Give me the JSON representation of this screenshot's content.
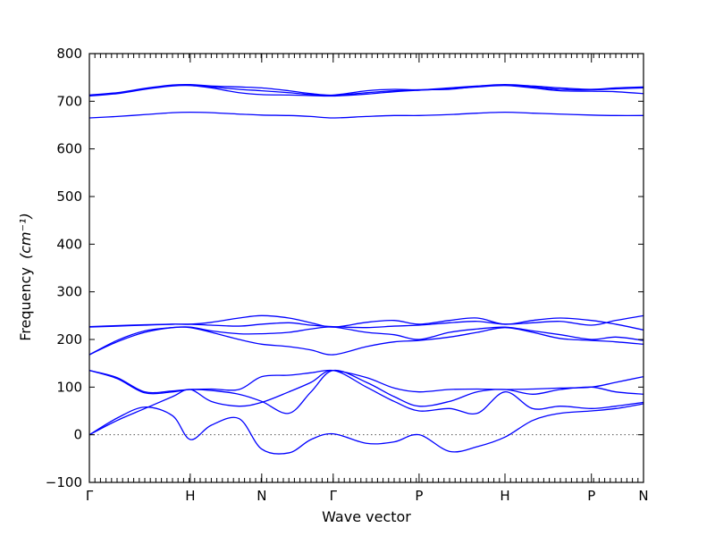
{
  "chart_data": {
    "type": "line",
    "xlabel": "Wave vector",
    "ylabel": "Frequency",
    "ylabel_unit": "(cm⁻¹)",
    "ylim": [
      -100,
      800
    ],
    "yticks": [
      -100,
      0,
      100,
      200,
      300,
      400,
      500,
      600,
      700,
      800
    ],
    "zero_reference_line": true,
    "grid": false,
    "legend": "none",
    "line_color": "#0000ff",
    "x_path": {
      "labels": [
        "Γ",
        "H",
        "N",
        "Γ",
        "P",
        "H",
        "P",
        "N"
      ],
      "positions": [
        0,
        0.182,
        0.311,
        0.44,
        0.595,
        0.75,
        0.906,
        1.0
      ]
    },
    "bands": [
      {
        "name": "",
        "x": [
          0,
          0.05,
          0.1,
          0.15,
          0.182,
          0.22,
          0.27,
          0.311,
          0.36,
          0.4,
          0.44,
          0.5,
          0.55,
          0.595,
          0.65,
          0.7,
          0.75,
          0.8,
          0.85,
          0.906,
          0.95,
          1.0
        ],
        "y": [
          0,
          35,
          58,
          40,
          -10,
          20,
          34,
          -30,
          -38,
          -10,
          2,
          -18,
          -15,
          0,
          -35,
          -25,
          -5,
          30,
          45,
          50,
          55,
          65
        ]
      },
      {
        "name": "",
        "x": [
          0,
          0.05,
          0.1,
          0.15,
          0.182,
          0.22,
          0.27,
          0.311,
          0.36,
          0.4,
          0.44,
          0.5,
          0.55,
          0.595,
          0.65,
          0.7,
          0.75,
          0.8,
          0.85,
          0.906,
          0.95,
          1.0
        ],
        "y": [
          0,
          30,
          55,
          80,
          95,
          70,
          60,
          68,
          90,
          110,
          135,
          100,
          70,
          50,
          55,
          45,
          90,
          55,
          60,
          55,
          60,
          68
        ]
      },
      {
        "name": "",
        "x": [
          0,
          0.05,
          0.1,
          0.15,
          0.182,
          0.22,
          0.27,
          0.311,
          0.36,
          0.4,
          0.44,
          0.5,
          0.55,
          0.595,
          0.65,
          0.7,
          0.75,
          0.8,
          0.85,
          0.906,
          0.95,
          1.0
        ],
        "y": [
          135,
          120,
          90,
          92,
          95,
          93,
          85,
          70,
          45,
          90,
          135,
          110,
          80,
          60,
          70,
          90,
          95,
          85,
          95,
          100,
          90,
          85
        ]
      },
      {
        "name": "",
        "x": [
          0,
          0.05,
          0.1,
          0.15,
          0.182,
          0.22,
          0.27,
          0.311,
          0.36,
          0.4,
          0.44,
          0.5,
          0.55,
          0.595,
          0.65,
          0.7,
          0.75,
          0.8,
          0.85,
          0.906,
          0.95,
          1.0
        ],
        "y": [
          135,
          118,
          88,
          90,
          95,
          96,
          95,
          122,
          125,
          130,
          135,
          120,
          98,
          90,
          95,
          96,
          95,
          96,
          98,
          100,
          110,
          122
        ]
      },
      {
        "name": "",
        "x": [
          0,
          0.05,
          0.1,
          0.15,
          0.182,
          0.22,
          0.27,
          0.311,
          0.36,
          0.4,
          0.44,
          0.5,
          0.55,
          0.595,
          0.65,
          0.7,
          0.75,
          0.8,
          0.85,
          0.906,
          0.95,
          1.0
        ],
        "y": [
          168,
          195,
          215,
          225,
          225,
          215,
          200,
          190,
          185,
          178,
          168,
          185,
          195,
          198,
          205,
          215,
          225,
          215,
          202,
          198,
          195,
          190
        ]
      },
      {
        "name": "",
        "x": [
          0,
          0.05,
          0.1,
          0.15,
          0.182,
          0.22,
          0.27,
          0.311,
          0.36,
          0.4,
          0.44,
          0.5,
          0.55,
          0.595,
          0.65,
          0.7,
          0.75,
          0.8,
          0.85,
          0.906,
          0.95,
          1.0
        ],
        "y": [
          168,
          198,
          218,
          225,
          226,
          218,
          212,
          212,
          215,
          222,
          226,
          215,
          210,
          200,
          215,
          222,
          226,
          218,
          210,
          200,
          205,
          198
        ]
      },
      {
        "name": "",
        "x": [
          0,
          0.05,
          0.1,
          0.15,
          0.182,
          0.22,
          0.27,
          0.311,
          0.36,
          0.4,
          0.44,
          0.5,
          0.55,
          0.595,
          0.65,
          0.7,
          0.75,
          0.8,
          0.85,
          0.906,
          0.95,
          1.0
        ],
        "y": [
          226,
          228,
          230,
          232,
          232,
          236,
          245,
          250,
          245,
          235,
          226,
          236,
          240,
          232,
          240,
          245,
          232,
          240,
          245,
          240,
          232,
          220
        ]
      },
      {
        "name": "",
        "x": [
          0,
          0.05,
          0.1,
          0.15,
          0.182,
          0.22,
          0.27,
          0.311,
          0.36,
          0.4,
          0.44,
          0.5,
          0.55,
          0.595,
          0.65,
          0.7,
          0.75,
          0.8,
          0.85,
          0.906,
          0.95,
          1.0
        ],
        "y": [
          227,
          229,
          231,
          232,
          232,
          230,
          228,
          232,
          235,
          230,
          227,
          225,
          228,
          230,
          235,
          238,
          232,
          235,
          238,
          230,
          240,
          250
        ]
      },
      {
        "name": "",
        "x": [
          0,
          0.05,
          0.1,
          0.15,
          0.182,
          0.22,
          0.27,
          0.311,
          0.36,
          0.4,
          0.44,
          0.5,
          0.55,
          0.595,
          0.65,
          0.7,
          0.75,
          0.8,
          0.85,
          0.906,
          0.95,
          1.0
        ],
        "y": [
          665,
          668,
          672,
          676,
          677,
          676,
          673,
          671,
          670,
          668,
          665,
          668,
          670,
          670,
          672,
          675,
          677,
          675,
          673,
          671,
          670,
          670
        ]
      },
      {
        "name": "",
        "x": [
          0,
          0.05,
          0.1,
          0.15,
          0.182,
          0.22,
          0.27,
          0.311,
          0.36,
          0.4,
          0.44,
          0.5,
          0.55,
          0.595,
          0.65,
          0.7,
          0.75,
          0.8,
          0.85,
          0.906,
          0.95,
          1.0
        ],
        "y": [
          711,
          716,
          725,
          732,
          733,
          728,
          718,
          714,
          713,
          712,
          711,
          715,
          720,
          723,
          726,
          730,
          733,
          728,
          722,
          721,
          720,
          716
        ]
      },
      {
        "name": "",
        "x": [
          0,
          0.05,
          0.1,
          0.15,
          0.182,
          0.22,
          0.27,
          0.311,
          0.36,
          0.4,
          0.44,
          0.5,
          0.55,
          0.595,
          0.65,
          0.7,
          0.75,
          0.8,
          0.85,
          0.906,
          0.95,
          1.0
        ],
        "y": [
          712,
          717,
          726,
          733,
          734,
          730,
          725,
          722,
          718,
          714,
          712,
          718,
          722,
          724,
          725,
          731,
          734,
          730,
          725,
          724,
          726,
          728
        ]
      },
      {
        "name": "",
        "x": [
          0,
          0.05,
          0.1,
          0.15,
          0.182,
          0.22,
          0.27,
          0.311,
          0.36,
          0.4,
          0.44,
          0.5,
          0.55,
          0.595,
          0.65,
          0.7,
          0.75,
          0.8,
          0.85,
          0.906,
          0.95,
          1.0
        ],
        "y": [
          713,
          718,
          727,
          734,
          735,
          732,
          730,
          728,
          722,
          716,
          713,
          722,
          725,
          724,
          728,
          732,
          735,
          732,
          728,
          725,
          728,
          730
        ]
      }
    ]
  }
}
